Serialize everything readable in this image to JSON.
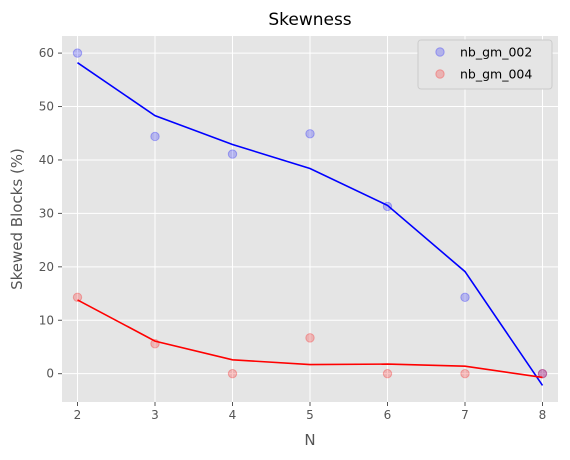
{
  "chart_data": {
    "type": "scatter",
    "title": "Skewness",
    "xlabel": "N",
    "ylabel": "Skewed Blocks (%)",
    "xlim": [
      1.8,
      8.2
    ],
    "ylim": [
      -5.3,
      63.2
    ],
    "x_ticks": [
      2,
      3,
      4,
      5,
      6,
      7,
      8
    ],
    "y_ticks": [
      0,
      10,
      20,
      30,
      40,
      50,
      60
    ],
    "grid": true,
    "legend_position": "top-right",
    "series": [
      {
        "name": "nb_gm_002",
        "color": "#0000ff",
        "x": [
          2,
          3,
          4,
          5,
          6,
          7,
          8
        ],
        "points": [
          60.0,
          44.4,
          41.1,
          44.9,
          31.3,
          14.3,
          0.0
        ],
        "trend": [
          58.2,
          48.3,
          42.9,
          38.4,
          31.5,
          19.1,
          -2.2
        ]
      },
      {
        "name": "nb_gm_004",
        "color": "#ff0000",
        "x": [
          2,
          3,
          4,
          5,
          6,
          7,
          8
        ],
        "points": [
          14.3,
          5.6,
          0.0,
          6.7,
          0.0,
          0.0,
          0.0
        ],
        "trend": [
          13.8,
          6.1,
          2.6,
          1.7,
          1.8,
          1.4,
          -0.7
        ]
      }
    ]
  }
}
